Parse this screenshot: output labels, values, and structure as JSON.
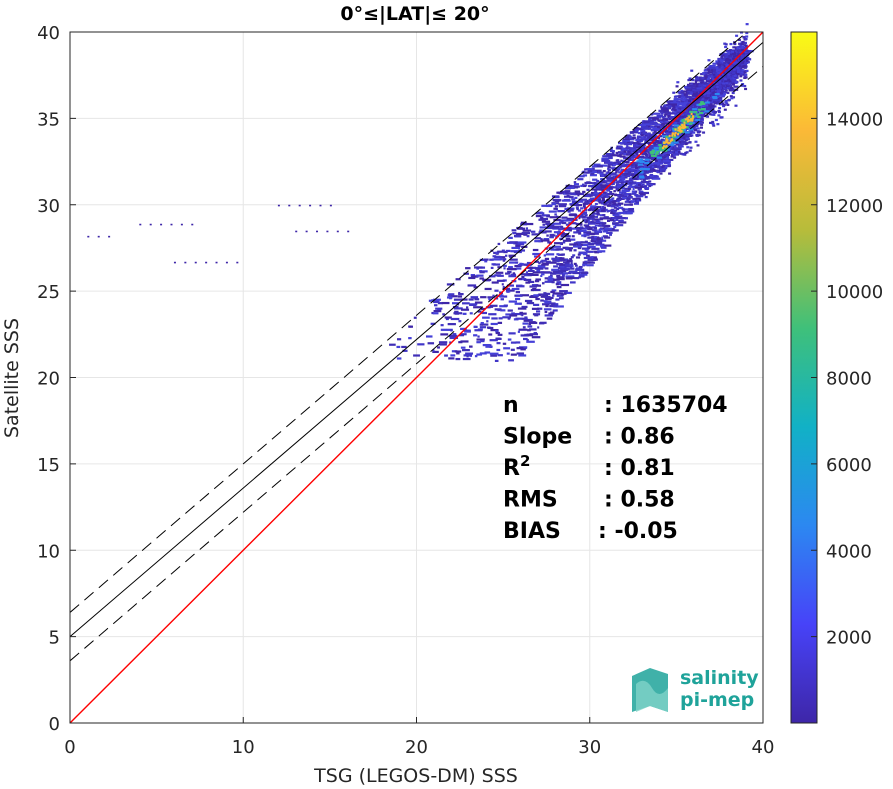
{
  "chart_data": {
    "type": "heatmap",
    "title": "0°≤|LAT|≤ 20°",
    "xlabel": "TSG (LEGOS-DM) SSS",
    "ylabel": "Satellite SSS",
    "xlim": [
      0,
      40
    ],
    "ylim": [
      0,
      40
    ],
    "xticks": [
      "0",
      "10",
      "20",
      "30",
      "40"
    ],
    "yticks": [
      "0",
      "5",
      "10",
      "15",
      "20",
      "25",
      "30",
      "35",
      "40"
    ],
    "grid": true,
    "colorbar": {
      "range": [
        0,
        16000
      ],
      "ticks": [
        "2000",
        "4000",
        "6000",
        "8000",
        "10000",
        "12000",
        "14000"
      ],
      "colormap": [
        "#3e26a8",
        "#4743f8",
        "#2c88f1",
        "#11b1c6",
        "#3fc07a",
        "#b8bc3a",
        "#fbb937",
        "#f9fb15"
      ]
    },
    "lines": [
      {
        "name": "one-to-one",
        "color": "#ff0000",
        "slope": 1.0,
        "intercept": 0.0
      },
      {
        "name": "regression",
        "color": "#000000",
        "slope": 0.86,
        "intercept": 5.0
      },
      {
        "name": "regression-plus-sigma",
        "color": "#000000",
        "dashed": true,
        "slope": 0.86,
        "intercept": 6.4
      },
      {
        "name": "regression-minus-sigma",
        "color": "#000000",
        "dashed": true,
        "slope": 0.86,
        "intercept": 3.6
      }
    ],
    "density_core": {
      "x": [
        28,
        39
      ],
      "slope": 1.0,
      "peak_x": 35,
      "peak_y": 34.3
    },
    "stats": [
      {
        "label": "n",
        "value": ": 1635704"
      },
      {
        "label": "Slope",
        "value": ": 0.86"
      },
      {
        "label": "R",
        "sup": "2",
        "value": ": 0.81"
      },
      {
        "label": "RMS",
        "value": ": 0.58"
      },
      {
        "label": "BIAS",
        "value": ": -0.05"
      }
    ]
  },
  "logo": {
    "line1": "salinity",
    "line2": "pi-mep"
  }
}
